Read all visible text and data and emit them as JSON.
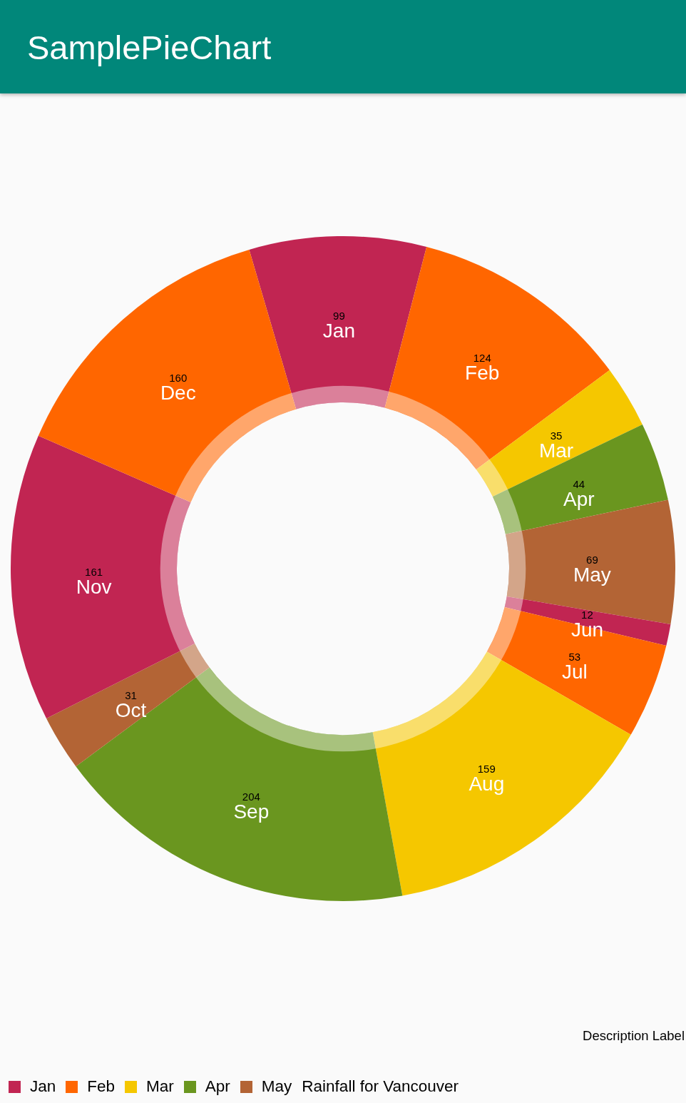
{
  "chart_data": {
    "type": "donut",
    "title": "SamplePieChart",
    "categories": [
      "Jan",
      "Feb",
      "Mar",
      "Apr",
      "May",
      "Jun",
      "Jul",
      "Aug",
      "Sep",
      "Oct",
      "Nov",
      "Dec"
    ],
    "values": [
      99,
      124,
      35,
      44,
      69,
      12,
      53,
      159,
      204,
      31,
      161,
      160
    ],
    "colors": [
      "#c12552",
      "#ff6600",
      "#f5c700",
      "#6a961f",
      "#b36435",
      "#c12552",
      "#ff6600",
      "#f5c700",
      "#6a961f",
      "#b36435",
      "#c12552",
      "#ff6600"
    ],
    "data_labels": true,
    "legend": "bottom left",
    "legend_title": "Rainfall for Vancouver",
    "annotations": [
      "Description Label"
    ]
  }
}
